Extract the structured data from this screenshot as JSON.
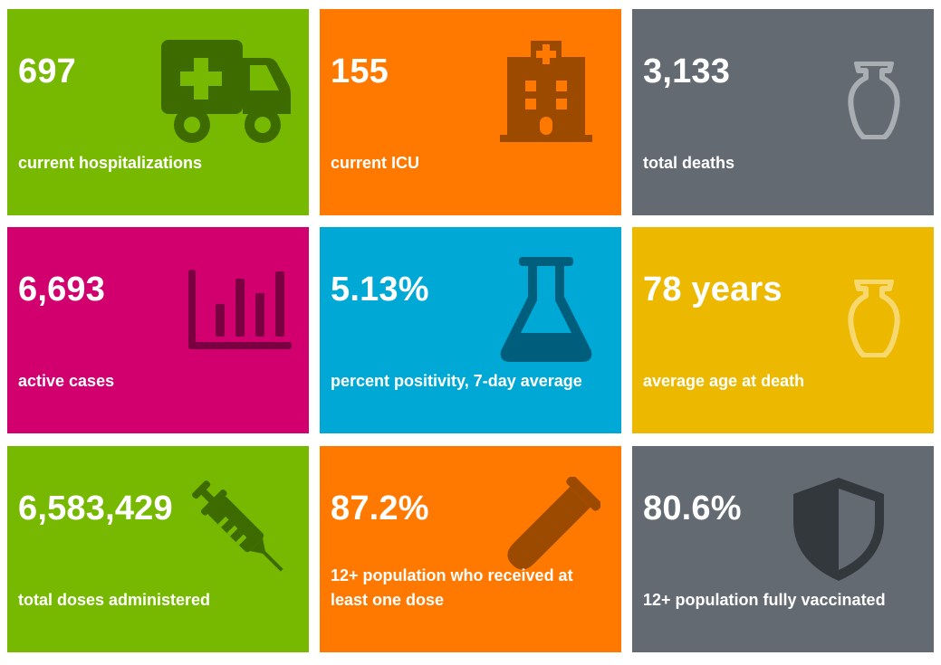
{
  "colors": {
    "green": "#76b900",
    "orange": "#ff7900",
    "slate": "#636a72",
    "magenta": "#d2006f",
    "cyan": "#00a8d6",
    "gold": "#ecb800"
  },
  "tiles": [
    {
      "value": "697",
      "label": "current hospitalizations",
      "icon": "ambulance-icon"
    },
    {
      "value": "155",
      "label": "current ICU",
      "icon": "hospital-icon"
    },
    {
      "value": "3,133",
      "label": "total deaths",
      "icon": "urn-icon"
    },
    {
      "value": "6,693",
      "label": "active cases",
      "icon": "bar-chart-icon"
    },
    {
      "value": "5.13%",
      "label": "percent positivity, 7-day average",
      "icon": "flask-icon"
    },
    {
      "value": "78 years",
      "label": "average age at death",
      "icon": "urn-icon"
    },
    {
      "value": "6,583,429",
      "label": "total doses administered",
      "icon": "syringe-icon"
    },
    {
      "value": "87.2%",
      "label": "12+ population who received at least one dose",
      "icon": "test-tube-icon"
    },
    {
      "value": "80.6%",
      "label": "12+ population fully vaccinated",
      "icon": "shield-icon"
    }
  ]
}
